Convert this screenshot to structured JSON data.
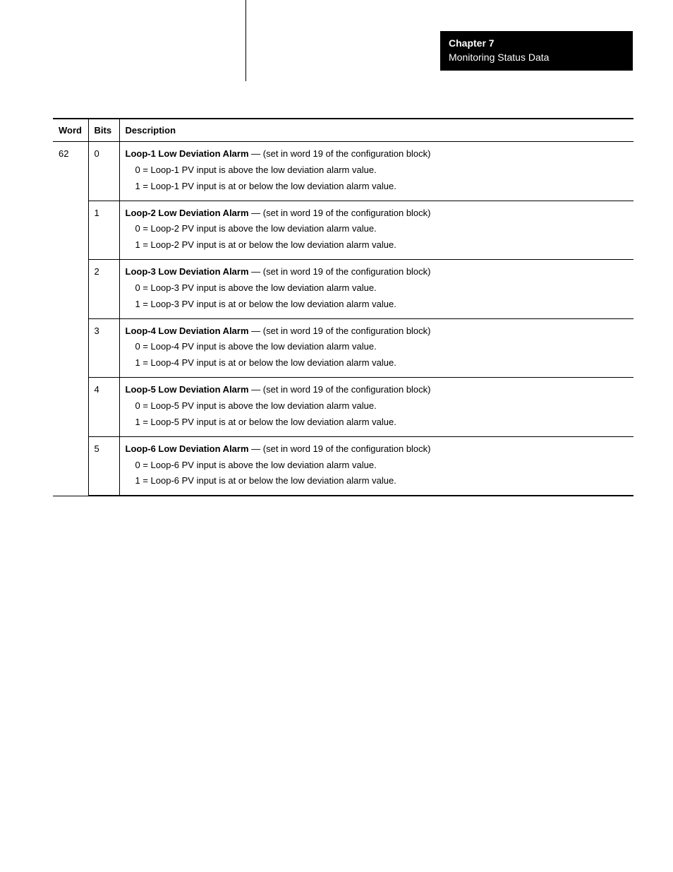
{
  "header": {
    "chapter": "Chapter 7",
    "subtitle": "Monitoring Status Data"
  },
  "table": {
    "columns": [
      "Word",
      "Bits",
      "Description"
    ],
    "word": "62",
    "rows": [
      {
        "bit": "0",
        "title": "Loop-1 Low Deviation Alarm",
        "note": " —  (set in word 19 of the configuration block)",
        "line0": "0 = Loop-1 PV input is above the low deviation alarm value.",
        "line1": "1 = Loop-1 PV input is at or below the low deviation alarm value."
      },
      {
        "bit": "1",
        "title": "Loop-2 Low Deviation Alarm",
        "note": " —  (set in word 19 of the configuration block)",
        "line0": "0 = Loop-2 PV input is above the low deviation alarm value.",
        "line1": "1 = Loop-2 PV input is at or below the low deviation alarm value."
      },
      {
        "bit": "2",
        "title": "Loop-3 Low Deviation Alarm",
        "note": " —  (set in word 19 of the configuration block)",
        "line0": "0 = Loop-3 PV input is above the low deviation alarm value.",
        "line1": "1 = Loop-3 PV input is at or below the low deviation alarm value."
      },
      {
        "bit": "3",
        "title": "Loop-4 Low Deviation Alarm",
        "note": " —  (set in word 19 of the configuration block)",
        "line0": "0 = Loop-4 PV input is above the low deviation alarm value.",
        "line1": "1 = Loop-4 PV input is at or below the low deviation alarm value."
      },
      {
        "bit": "4",
        "title": "Loop-5 Low Deviation Alarm",
        "note": " —  (set in word 19 of the configuration block)",
        "line0": "0 = Loop-5 PV input is above the low deviation alarm value.",
        "line1": "1 = Loop-5 PV input is at or below the low deviation alarm value."
      },
      {
        "bit": "5",
        "title": "Loop-6 Low Deviation Alarm",
        "note": " —  (set in word 19 of the configuration block)",
        "line0": "0 = Loop-6 PV input is above the low deviation alarm value.",
        "line1": "1 = Loop-6 PV input is at or below the low deviation alarm value."
      }
    ]
  }
}
